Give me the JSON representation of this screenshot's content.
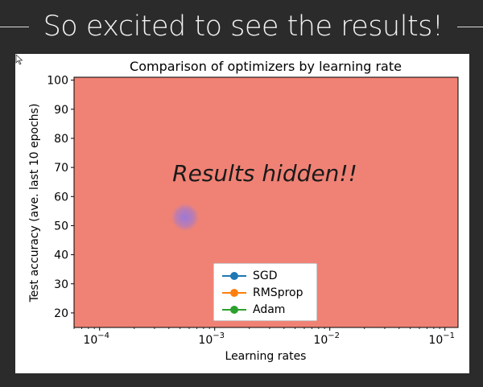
{
  "slide": {
    "title": "So excited to see the results!"
  },
  "overlay": {
    "text": "Results hidden!!"
  },
  "chart_data": {
    "type": "line",
    "title": "Comparison of optimizers by learning rate",
    "xlabel": "Learning rates",
    "ylabel": "Test accuracy (ave. last 10 epochs)",
    "x_scale": "log",
    "xlim": [
      6e-05,
      0.13
    ],
    "ylim": [
      15,
      101
    ],
    "x_ticks": [
      {
        "value": 0.0001,
        "base": "10",
        "exp": "−4"
      },
      {
        "value": 0.001,
        "base": "10",
        "exp": "−3"
      },
      {
        "value": 0.01,
        "base": "10",
        "exp": "−2"
      },
      {
        "value": 0.1,
        "base": "10",
        "exp": "−1"
      }
    ],
    "y_ticks": [
      20,
      30,
      40,
      50,
      60,
      70,
      80,
      90,
      100
    ],
    "legend_position": "lower-center",
    "plot_area_color": "#f08275",
    "series": [
      {
        "name": "SGD",
        "color": "#1f77b4",
        "values": []
      },
      {
        "name": "RMSprop",
        "color": "#ff7f0e",
        "values": []
      },
      {
        "name": "Adam",
        "color": "#2ca02c",
        "values": []
      }
    ]
  }
}
